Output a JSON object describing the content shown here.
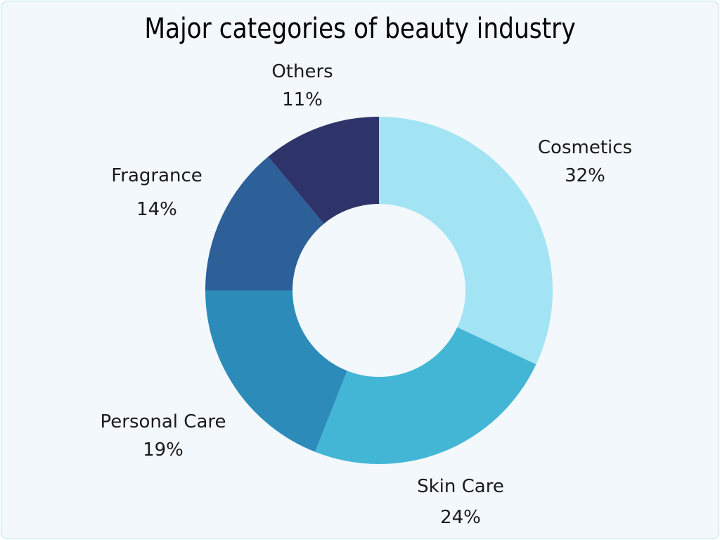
{
  "chart_data": {
    "type": "pie",
    "subtype": "donut",
    "title": "Major categories of beauty industry",
    "categories": [
      "Cosmetics",
      "Skin Care",
      "Personal Care",
      "Fragrance",
      "Others"
    ],
    "values": [
      32,
      24,
      19,
      14,
      11
    ],
    "labels": [
      "32%",
      "24%",
      "19%",
      "14%",
      "11%"
    ],
    "colors": [
      "#a3e4f4",
      "#43b6d6",
      "#2d8bba",
      "#2d5f98",
      "#2e3469"
    ],
    "start_angle": "top (12 o'clock), clockwise",
    "legend": "none; labels placed outside slices"
  },
  "labels": {
    "cosmetics": {
      "name": "Cosmetics",
      "pct": "32%"
    },
    "skin_care": {
      "name": "Skin Care",
      "pct": "24%"
    },
    "personal_care": {
      "name": "Personal Care",
      "pct": "19%"
    },
    "fragrance": {
      "name": "Fragrance",
      "pct": "14%"
    },
    "others": {
      "name": "Others",
      "pct": "11%"
    }
  }
}
